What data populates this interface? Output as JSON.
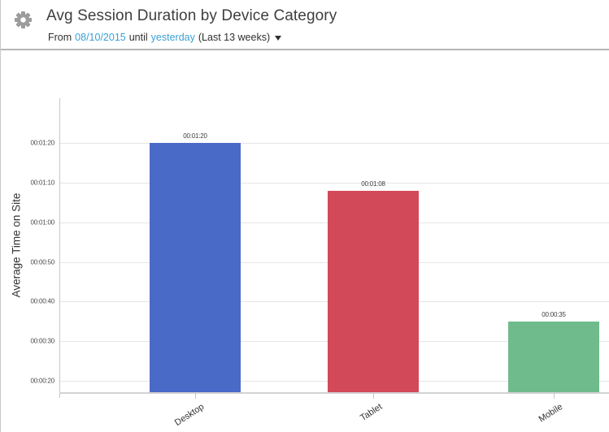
{
  "header": {
    "title": "Avg Session Duration by Device Category",
    "date_range": {
      "prefix": "From",
      "start_date": "08/10/2015",
      "middle": "until",
      "end_date": "yesterday",
      "suffix": "(Last 13 weeks)"
    },
    "icons": {
      "settings": "gear-icon",
      "dropdown": "caret-down-icon"
    }
  },
  "colors": {
    "link_blue": "#3aa0d8",
    "title_text": "#3f3f3f",
    "gear_gray": "#9c9c9c",
    "gridline": "#e5e5e5",
    "axis_line": "#c6c6c6",
    "bar_desktop_blue": "#4a6ac8",
    "bar_tablet_red": "#d2495a",
    "bar_mobile_green": "#6fbb8c"
  },
  "chart_data": {
    "type": "bar",
    "title": "Avg Session Duration by Device Category",
    "xlabel": "",
    "ylabel": "Average Time on Site",
    "categories": [
      "Desktop",
      "Tablet",
      "Mobile"
    ],
    "values_seconds": [
      80,
      68,
      35
    ],
    "value_labels": [
      "00:01:20",
      "00:01:08",
      "00:00:35"
    ],
    "bar_colors": [
      "#4a6ac8",
      "#d2495a",
      "#6fbb8c"
    ],
    "yticks_seconds": [
      20,
      30,
      40,
      50,
      60,
      70,
      80
    ],
    "ytick_labels": [
      "00:00:20",
      "00:00:30",
      "00:00:40",
      "00:00:50",
      "00:01:00",
      "00:01:10",
      "00:01:20"
    ],
    "ylim_seconds": [
      17,
      91
    ],
    "grid": true,
    "legend": "none"
  }
}
